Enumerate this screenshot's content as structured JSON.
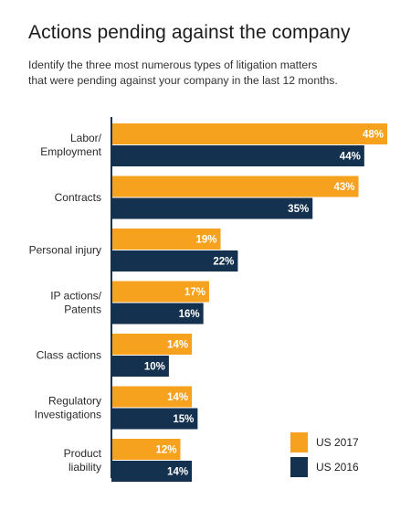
{
  "title": "Actions pending against the company",
  "subtitle_lines": [
    "Identify the three most numerous types of litigation matters",
    "that were pending against your company in the last 12 months."
  ],
  "colors": {
    "us2017": "#f7a21f",
    "us2016": "#14324f",
    "axis": "#14324f",
    "bar_label": "#ffffff"
  },
  "chart_data": {
    "type": "bar",
    "orientation": "horizontal",
    "categories": [
      [
        "Labor/",
        "Employment"
      ],
      [
        "Contracts"
      ],
      [
        "Personal injury"
      ],
      [
        "IP actions/",
        "Patents"
      ],
      [
        "Class actions"
      ],
      [
        "Regulatory",
        "Investigations"
      ],
      [
        "Product",
        "liability"
      ]
    ],
    "series": [
      {
        "name": "US 2017",
        "values": [
          48,
          43,
          19,
          17,
          14,
          14,
          12
        ],
        "labels": [
          "48%",
          "43%",
          "19%",
          "17%",
          "14%",
          "14%",
          "12%"
        ]
      },
      {
        "name": "US 2016",
        "values": [
          44,
          35,
          22,
          16,
          10,
          15,
          14
        ],
        "labels": [
          "44%",
          "35%",
          "22%",
          "16%",
          "10%",
          "15%",
          "14%"
        ]
      }
    ],
    "xlim": [
      0,
      50
    ],
    "grid": false,
    "legend_position": "bottom-right"
  }
}
